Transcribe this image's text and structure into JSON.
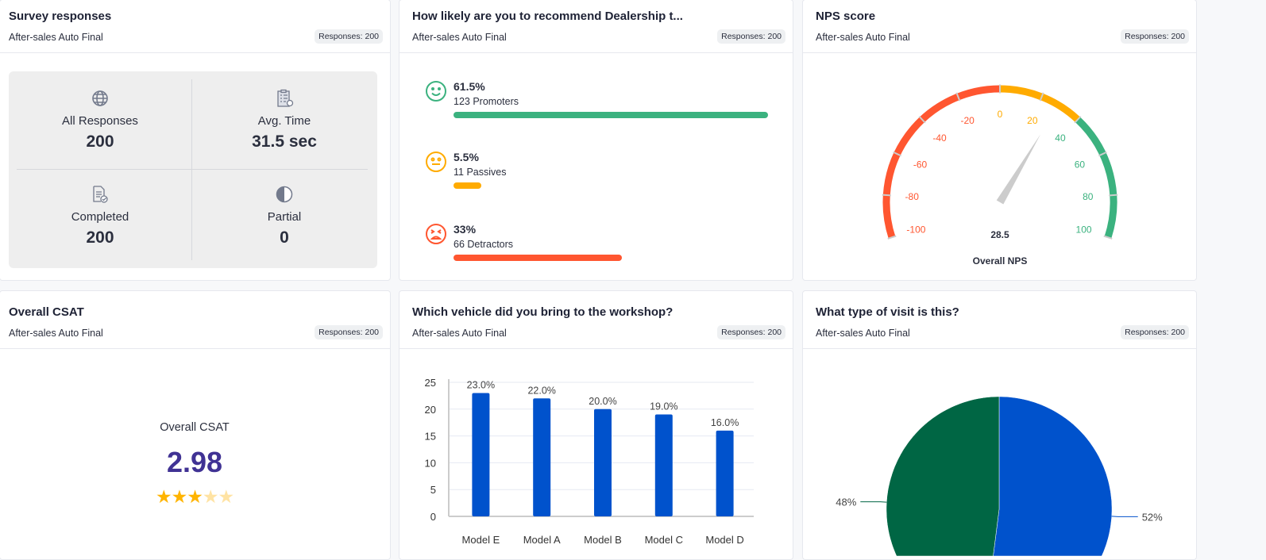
{
  "cards": {
    "survey": {
      "title": "Survey responses",
      "subtitle": "After-sales Auto Final",
      "badge": "Responses: 200",
      "stats": [
        {
          "label": "All Responses",
          "value": "200",
          "icon": "globe-icon"
        },
        {
          "label": "Avg. Time",
          "value": "31.5 sec",
          "icon": "clipboard-clock-icon"
        },
        {
          "label": "Completed",
          "value": "200",
          "icon": "document-check-icon"
        },
        {
          "label": "Partial",
          "value": "0",
          "icon": "half-circle-icon"
        }
      ]
    },
    "recommend": {
      "title": "How likely are you to recommend Dealership t...",
      "subtitle": "After-sales Auto Final",
      "badge": "Responses: 200",
      "rows": [
        {
          "pct": "61.5%",
          "count": "123 Promoters",
          "value": 61.5,
          "color": "#3bb27f",
          "icon": "smile-icon"
        },
        {
          "pct": "5.5%",
          "count": "11 Passives",
          "value": 5.5,
          "color": "#ffab00",
          "icon": "neutral-face-icon"
        },
        {
          "pct": "33%",
          "count": "66 Detractors",
          "value": 33,
          "color": "#ff5630",
          "icon": "angry-face-icon"
        }
      ]
    },
    "nps": {
      "title": "NPS score",
      "subtitle": "After-sales Auto Final",
      "badge": "Responses: 200",
      "value": "28.5",
      "label": "Overall NPS"
    },
    "csat": {
      "title": "Overall CSAT",
      "subtitle": "After-sales Auto Final",
      "badge": "Responses: 200",
      "label": "Overall CSAT",
      "value": "2.98",
      "stars": 3,
      "max_stars": 5
    },
    "vehicle": {
      "title": "Which vehicle did you bring to the workshop?",
      "subtitle": "After-sales Auto Final",
      "badge": "Responses: 200"
    },
    "visit": {
      "title": "What type of visit is this?",
      "subtitle": "After-sales Auto Final",
      "badge": "Responses: 200"
    }
  },
  "chart_data": [
    {
      "type": "gauge",
      "min": -100,
      "max": 100,
      "value": 28.5,
      "ticks": [
        "-100",
        "-80",
        "-60",
        "-40",
        "-20",
        "0",
        "20",
        "40",
        "60",
        "80",
        "100"
      ],
      "bands": [
        {
          "from": -100,
          "to": 0,
          "color": "#ff5630"
        },
        {
          "from": 0,
          "to": 40,
          "color": "#ffab00"
        },
        {
          "from": 40,
          "to": 100,
          "color": "#3bb27f"
        }
      ],
      "label": "Overall NPS"
    },
    {
      "type": "bar",
      "categories": [
        "Model E",
        "Model A",
        "Model B",
        "Model C",
        "Model D"
      ],
      "values": [
        23,
        22,
        20,
        19,
        16
      ],
      "labels": [
        "23.0%",
        "22.0%",
        "20.0%",
        "19.0%",
        "16.0%"
      ],
      "ylim": [
        0,
        25
      ],
      "yticks": [
        "0",
        "5",
        "10",
        "15",
        "20",
        "25"
      ],
      "color": "#0052cc",
      "grid": true
    },
    {
      "type": "pie",
      "values": [
        52,
        48
      ],
      "labels": [
        "52%",
        "48%"
      ],
      "colors": [
        "#0052cc",
        "#006644"
      ]
    }
  ]
}
